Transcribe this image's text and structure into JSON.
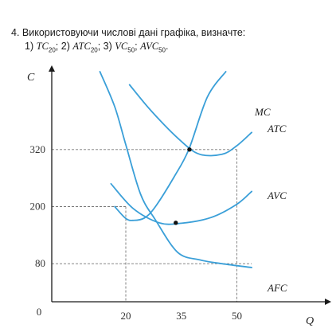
{
  "task": {
    "number": "4.",
    "intro": "Використовуючи числові дані графіка, визначте:",
    "items": [
      {
        "prefix": "1) ",
        "sym": "TC",
        "sub": "20",
        "suffix": "; "
      },
      {
        "prefix": "2) ",
        "sym": "ATC",
        "sub": "20",
        "suffix": "; "
      },
      {
        "prefix": "3) ",
        "sym": "VC",
        "sub": "50",
        "suffix": "; "
      },
      {
        "prefix": "",
        "sym": "AVC",
        "sub": "50",
        "suffix": "."
      }
    ]
  },
  "chart_data": {
    "type": "line",
    "xlabel": "Q",
    "ylabel": "C",
    "xticks": [
      0,
      20,
      35,
      50
    ],
    "yticks": [
      80,
      200,
      320
    ],
    "guides": [
      [
        20,
        200
      ],
      [
        50,
        320
      ]
    ],
    "series": [
      {
        "name": "MC",
        "points": [
          [
            17,
            200
          ],
          [
            20,
            175
          ],
          [
            22,
            171
          ],
          [
            25,
            176
          ],
          [
            28,
            200
          ],
          [
            33,
            262
          ],
          [
            37,
            320
          ],
          [
            42,
            430
          ],
          [
            47,
            558
          ]
        ]
      },
      {
        "name": "ATC",
        "points": [
          [
            21,
            456
          ],
          [
            27,
            400
          ],
          [
            35,
            337
          ],
          [
            40,
            310
          ],
          [
            46,
            310
          ],
          [
            50,
            328
          ],
          [
            54,
            356
          ]
        ]
      },
      {
        "name": "AVC",
        "points": [
          [
            16,
            248
          ],
          [
            22,
            196
          ],
          [
            29,
            166
          ],
          [
            35,
            165
          ],
          [
            43,
            177
          ],
          [
            50,
            205
          ],
          [
            54,
            232
          ]
        ]
      },
      {
        "name": "AFC",
        "points": [
          [
            13,
            557
          ],
          [
            17,
            410
          ],
          [
            20,
            330
          ],
          [
            24,
            226
          ],
          [
            28,
            172
          ],
          [
            34,
            104
          ],
          [
            40,
            88
          ],
          [
            46,
            80
          ],
          [
            54,
            72
          ]
        ]
      }
    ],
    "highlighted_points": [
      {
        "series": "MC",
        "x": 37.2,
        "y": 320
      },
      {
        "series": "MC",
        "x": 33.5,
        "y": 166
      }
    ],
    "colors": {
      "curve": "#3a9fd8",
      "axis": "#1a1a1a",
      "guide": "#777777",
      "point": "#111111"
    }
  }
}
